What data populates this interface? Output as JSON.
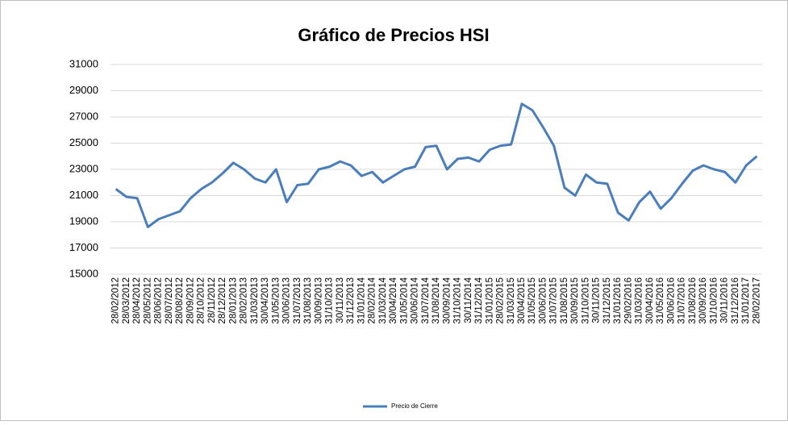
{
  "chart_data": {
    "type": "line",
    "title": "Gráfico de Precios HSI",
    "categories": [
      "28/02/2012",
      "28/03/2012",
      "28/04/2012",
      "28/05/2012",
      "28/06/2012",
      "28/07/2012",
      "28/08/2012",
      "28/09/2012",
      "28/10/2012",
      "28/11/2012",
      "28/12/2012",
      "28/01/2013",
      "28/02/2013",
      "31/03/2013",
      "30/04/2013",
      "31/05/2013",
      "30/06/2013",
      "31/07/2013",
      "31/08/2013",
      "30/09/2013",
      "31/10/2013",
      "30/11/2013",
      "31/12/2013",
      "31/01/2014",
      "28/02/2014",
      "31/03/2014",
      "30/04/2014",
      "31/05/2014",
      "30/06/2014",
      "31/07/2014",
      "31/08/2014",
      "30/09/2014",
      "31/10/2014",
      "30/11/2014",
      "31/12/2014",
      "31/01/2015",
      "28/02/2015",
      "31/03/2015",
      "30/04/2015",
      "31/05/2015",
      "30/06/2015",
      "31/07/2015",
      "31/08/2015",
      "30/09/2015",
      "31/10/2015",
      "30/11/2015",
      "31/12/2015",
      "31/01/2016",
      "29/02/2016",
      "31/03/2016",
      "30/04/2016",
      "31/05/2016",
      "30/06/2016",
      "31/07/2016",
      "31/08/2016",
      "30/09/2016",
      "31/10/2016",
      "30/11/2016",
      "31/12/2016",
      "31/01/2017",
      "28/02/2017"
    ],
    "series": [
      {
        "name": "Precio de Cierre",
        "color": "#4a7ebb",
        "values": [
          21500,
          20900,
          20800,
          18600,
          19200,
          19500,
          19800,
          20800,
          21500,
          22000,
          22700,
          23500,
          23000,
          22300,
          22000,
          23000,
          20500,
          21800,
          21900,
          23000,
          23200,
          23600,
          23300,
          22500,
          22800,
          22000,
          22500,
          23000,
          23200,
          24700,
          24800,
          23000,
          23800,
          23900,
          23600,
          24500,
          24800,
          24900,
          28000,
          27500,
          26200,
          24800,
          21600,
          21000,
          22600,
          22000,
          21900,
          19700,
          19100,
          20500,
          21300,
          20000,
          20800,
          21900,
          22900,
          23300,
          23000,
          22800,
          22000,
          23300,
          24000
        ]
      }
    ],
    "ylim": [
      15000,
      31000
    ],
    "yticks": [
      15000,
      17000,
      19000,
      21000,
      23000,
      25000,
      27000,
      29000,
      31000
    ],
    "grid": true,
    "legend": "bottom"
  }
}
